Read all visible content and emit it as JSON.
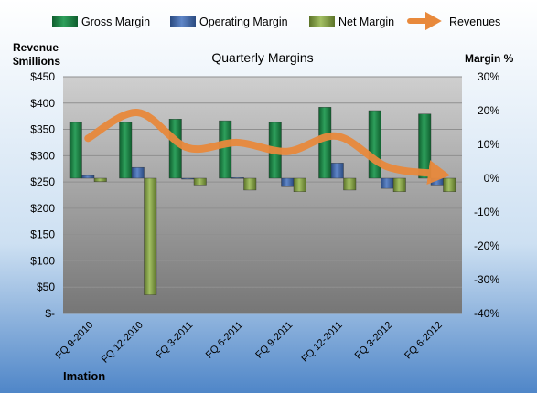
{
  "chart_data": {
    "type": "bar",
    "title": "Quarterly Margins",
    "company": "Imation",
    "left_axis_label_line1": "Revenue",
    "left_axis_label_line2": "$millions",
    "right_axis_label": "Margin %",
    "categories": [
      "FQ 9-2010",
      "FQ 12-2010",
      "FQ 3-2011",
      "FQ 6-2011",
      "FQ 9-2011",
      "FQ 12-2011",
      "FQ 3-2012",
      "FQ 6-2012"
    ],
    "left_axis": {
      "min": 0,
      "max": 450,
      "ticks": [
        450,
        400,
        350,
        300,
        250,
        200,
        150,
        100,
        50,
        0
      ],
      "tick_labels": [
        "$450",
        "$400",
        "$350",
        "$300",
        "$250",
        "$200",
        "$150",
        "$100",
        "$50",
        "$-"
      ]
    },
    "right_axis": {
      "min": -40,
      "max": 30,
      "ticks": [
        30,
        20,
        10,
        0,
        -10,
        -20,
        -30,
        -40
      ],
      "tick_labels": [
        "30%",
        "20%",
        "10%",
        "0%",
        "-10%",
        "-20%",
        "-30%",
        "-40%"
      ]
    },
    "series": [
      {
        "name": "Gross Margin",
        "type": "bar",
        "axis": "right",
        "unit": "%",
        "color": "#1f8a4c",
        "values": [
          16.5,
          16.5,
          17.5,
          17,
          16.5,
          21,
          20,
          19
        ]
      },
      {
        "name": "Operating Margin",
        "type": "bar",
        "axis": "right",
        "unit": "%",
        "color": "#4a6eab",
        "values": [
          0.8,
          3.2,
          -0.2,
          0.2,
          -2.5,
          4.5,
          -3,
          -2
        ]
      },
      {
        "name": "Net Margin",
        "type": "bar",
        "axis": "right",
        "unit": "%",
        "color": "#8aa64a",
        "values": [
          -1,
          -34.5,
          -2,
          -3.5,
          -4,
          -3.5,
          -4,
          -4
        ]
      },
      {
        "name": "Revenues",
        "type": "line",
        "axis": "left",
        "unit": "$millions",
        "color": "#e8893c",
        "values": [
          333,
          382,
          315,
          325,
          308,
          337,
          279,
          266
        ]
      }
    ],
    "legend_position": "top",
    "grid": true
  }
}
